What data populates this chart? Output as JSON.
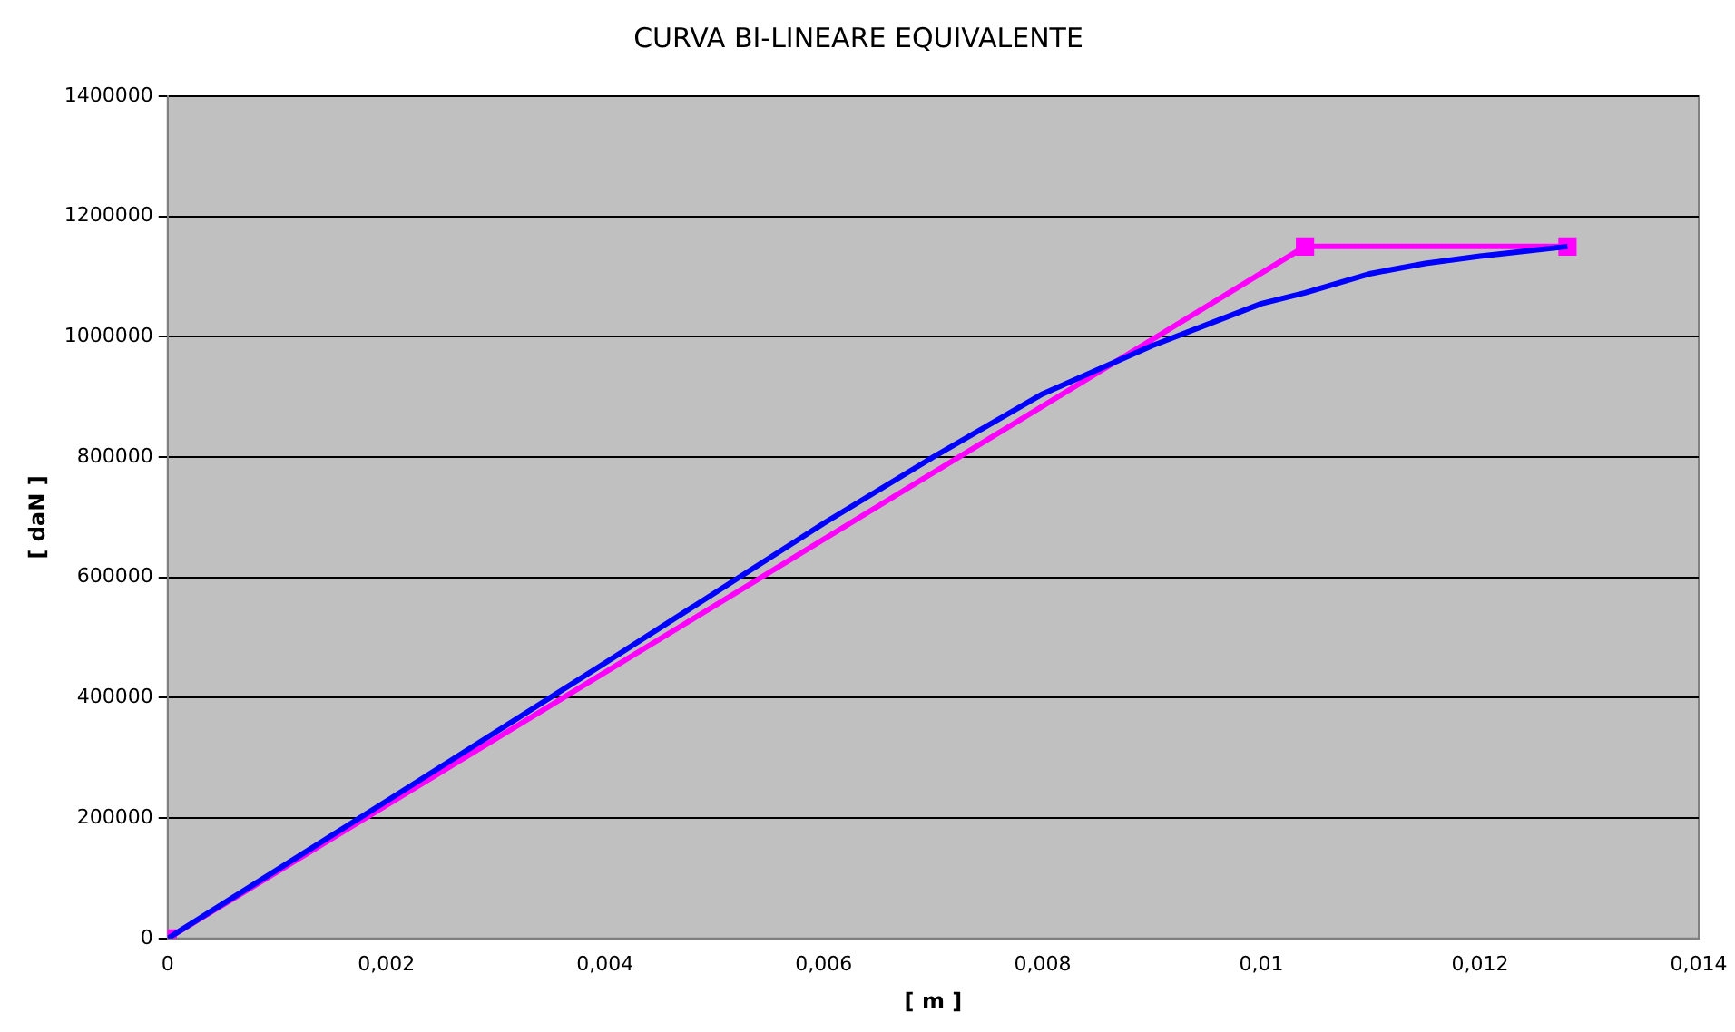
{
  "chart_data": {
    "type": "line",
    "title": "CURVA BI-LINEARE EQUIVALENTE",
    "xlabel": "[ m ]",
    "ylabel": "[ daN ]",
    "xlim": [
      0,
      0.014
    ],
    "xticks": [
      0,
      {
        "value": 0.002,
        "label": "0,002"
      },
      {
        "value": 0.004,
        "label": "0,004"
      },
      {
        "value": 0.006,
        "label": "0,006"
      },
      {
        "value": 0.008,
        "label": "0,008"
      },
      {
        "value": 0.01,
        "label": "0,01"
      },
      {
        "value": 0.012,
        "label": "0,012"
      },
      {
        "value": 0.014,
        "label": "0,014"
      }
    ],
    "ylim": [
      0,
      1400000
    ],
    "yticks": [
      0,
      200000,
      400000,
      600000,
      800000,
      1000000,
      1200000,
      1400000
    ],
    "grid": "y",
    "legend": false,
    "series": [
      {
        "color": "#0000ff",
        "marker": "none",
        "x": [
          0,
          0.002,
          0.004,
          0.006,
          0.007,
          0.008,
          0.009,
          0.0095,
          0.01,
          0.0104,
          0.011,
          0.0115,
          0.012,
          0.0128
        ],
        "values": [
          0,
          228000,
          458000,
          690000,
          800000,
          905000,
          985000,
          1020000,
          1055000,
          1073000,
          1105000,
          1122000,
          1134000,
          1150000
        ]
      },
      {
        "color": "#ff00ff",
        "marker": "square",
        "x": [
          0,
          0.0104,
          0.0128
        ],
        "values": [
          0,
          1150000,
          1150000
        ]
      }
    ]
  }
}
